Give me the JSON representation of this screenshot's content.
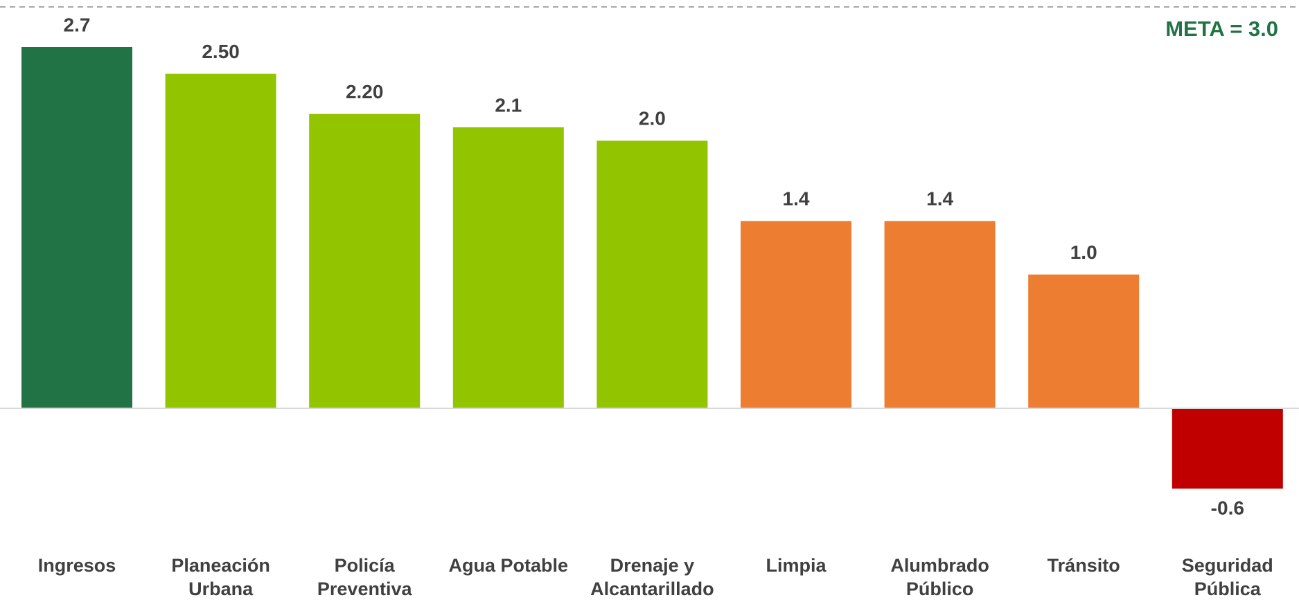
{
  "chart_data": {
    "type": "bar",
    "categories": [
      "Ingresos",
      "Planeación\nUrbana",
      "Policía\nPreventiva",
      "Agua Potable",
      "Drenaje y\nAlcantarillado",
      "Limpia",
      "Alumbrado\nPúblico",
      "Tránsito",
      "Seguridad\nPública"
    ],
    "values": [
      2.7,
      2.5,
      2.2,
      2.1,
      2.0,
      1.4,
      1.4,
      1.0,
      -0.6
    ],
    "value_labels": [
      "2.7",
      "2.50",
      "2.20",
      "2.1",
      "2.0",
      "1.4",
      "1.4",
      "1.0",
      "-0.6"
    ],
    "colors": [
      "#217346",
      "#92c400",
      "#92c400",
      "#92c400",
      "#92c400",
      "#ed7d31",
      "#ed7d31",
      "#ed7d31",
      "#c00000"
    ],
    "target": 3.0,
    "annotation": "META = 3.0"
  }
}
